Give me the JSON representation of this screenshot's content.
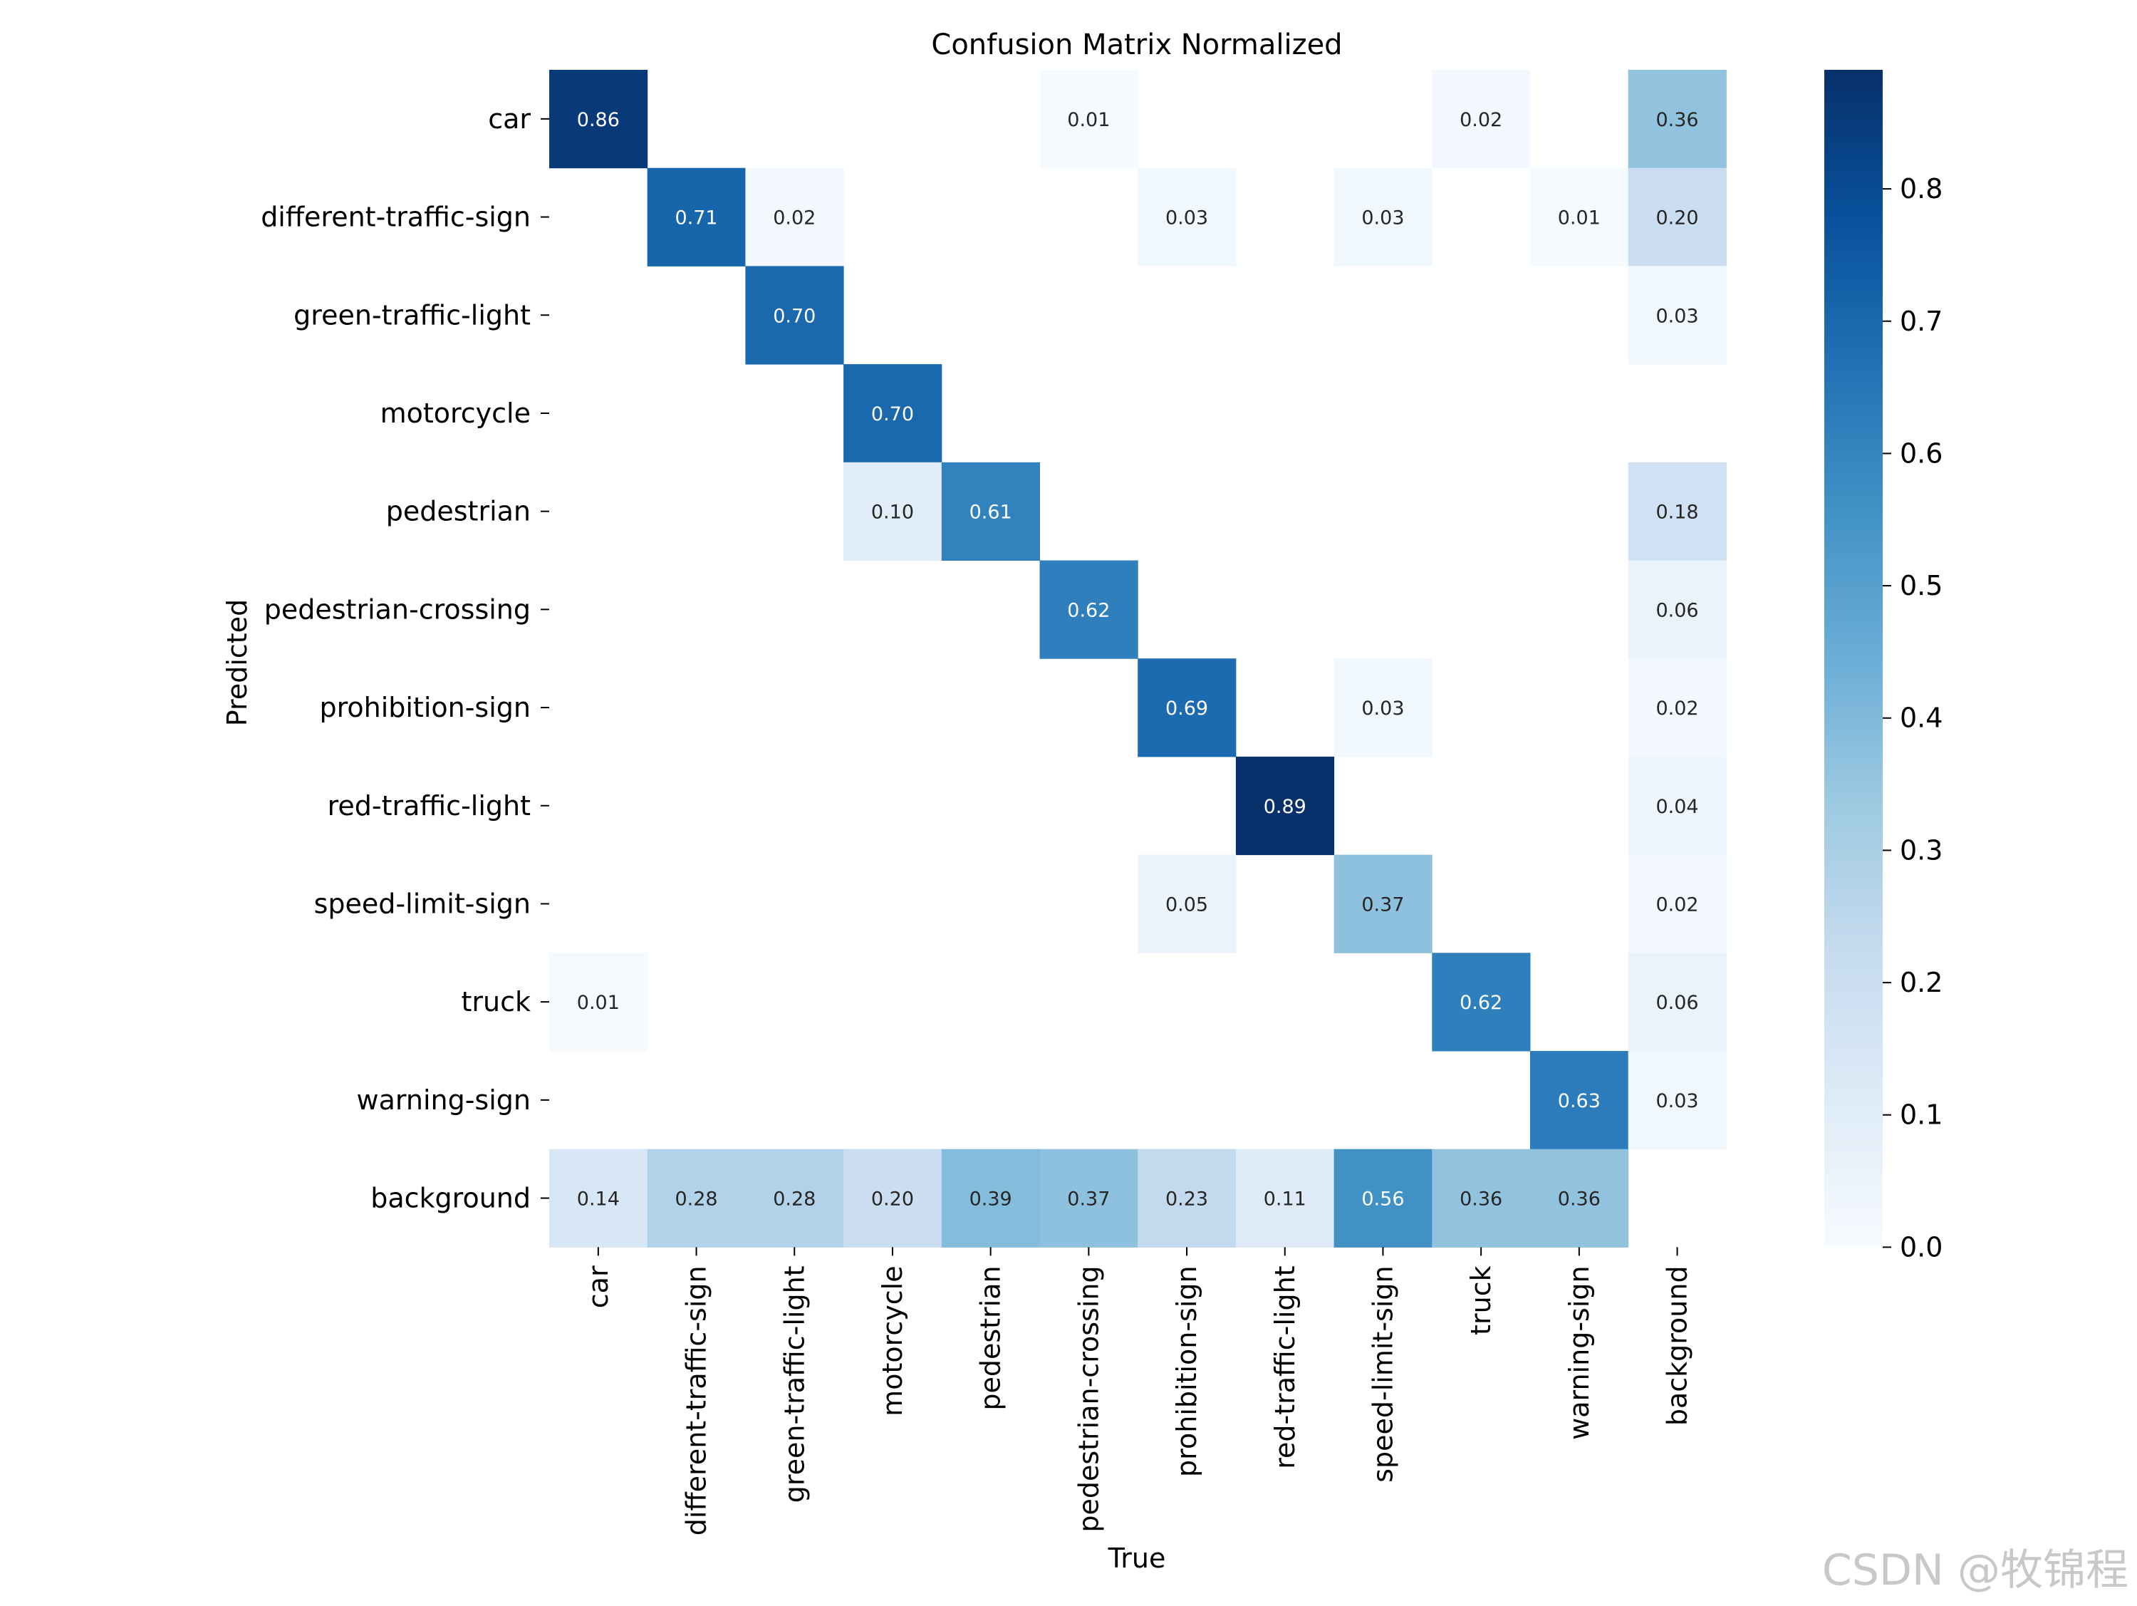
{
  "chart_data": {
    "type": "heatmap",
    "title": "Confusion Matrix Normalized",
    "xlabel": "True",
    "ylabel": "Predicted",
    "x_categories": [
      "car",
      "different-traffic-sign",
      "green-traffic-light",
      "motorcycle",
      "pedestrian",
      "pedestrian-crossing",
      "prohibition-sign",
      "red-traffic-light",
      "speed-limit-sign",
      "truck",
      "warning-sign",
      "background"
    ],
    "y_categories": [
      "car",
      "different-traffic-sign",
      "green-traffic-light",
      "motorcycle",
      "pedestrian",
      "pedestrian-crossing",
      "prohibition-sign",
      "red-traffic-light",
      "speed-limit-sign",
      "truck",
      "warning-sign",
      "background"
    ],
    "values": [
      [
        0.86,
        null,
        null,
        null,
        null,
        0.01,
        null,
        null,
        null,
        0.02,
        null,
        0.36
      ],
      [
        null,
        0.71,
        0.02,
        null,
        null,
        null,
        0.03,
        null,
        0.03,
        null,
        0.01,
        0.2
      ],
      [
        null,
        null,
        0.7,
        null,
        null,
        null,
        null,
        null,
        null,
        null,
        null,
        0.03
      ],
      [
        null,
        null,
        null,
        0.7,
        null,
        null,
        null,
        null,
        null,
        null,
        null,
        null
      ],
      [
        null,
        null,
        null,
        0.1,
        0.61,
        null,
        null,
        null,
        null,
        null,
        null,
        0.18
      ],
      [
        null,
        null,
        null,
        null,
        null,
        0.62,
        null,
        null,
        null,
        null,
        null,
        0.06
      ],
      [
        null,
        null,
        null,
        null,
        null,
        null,
        0.69,
        null,
        0.03,
        null,
        null,
        0.02
      ],
      [
        null,
        null,
        null,
        null,
        null,
        null,
        null,
        0.89,
        null,
        null,
        null,
        0.04
      ],
      [
        null,
        null,
        null,
        null,
        null,
        null,
        0.05,
        null,
        0.37,
        null,
        null,
        0.02
      ],
      [
        0.01,
        null,
        null,
        null,
        null,
        null,
        null,
        null,
        null,
        0.62,
        null,
        0.06
      ],
      [
        null,
        null,
        null,
        null,
        null,
        null,
        null,
        null,
        null,
        null,
        0.63,
        0.03
      ],
      [
        0.14,
        0.28,
        0.28,
        0.2,
        0.39,
        0.37,
        0.23,
        0.11,
        0.56,
        0.36,
        0.36,
        null
      ]
    ],
    "colormap": "Blues",
    "colorbar": {
      "range": [
        0.0,
        0.89
      ],
      "ticks": [
        0.0,
        0.1,
        0.2,
        0.3,
        0.4,
        0.5,
        0.6,
        0.7,
        0.8
      ],
      "tick_labels": [
        "0.0",
        "0.1",
        "0.2",
        "0.3",
        "0.4",
        "0.5",
        "0.6",
        "0.7",
        "0.8"
      ]
    }
  },
  "watermark": "CSDN @牧锦程"
}
